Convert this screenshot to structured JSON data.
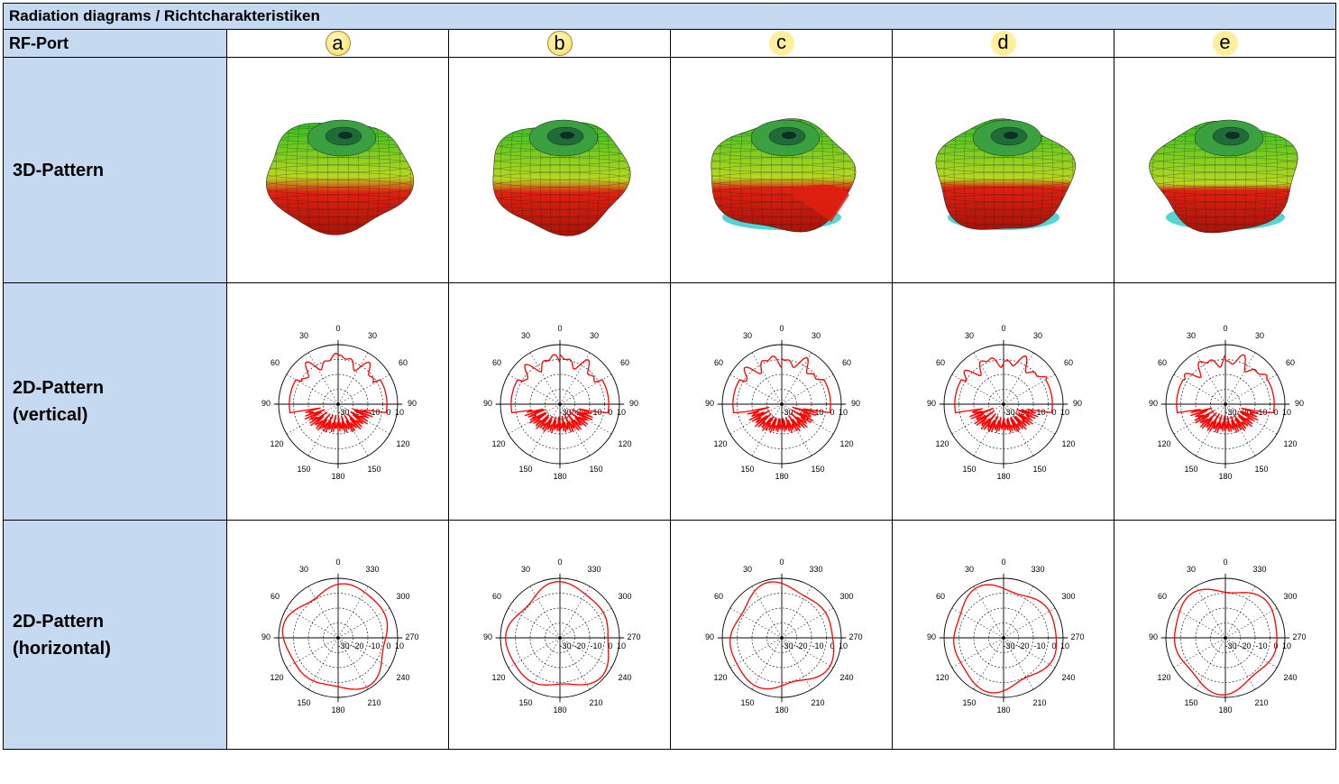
{
  "title": "Radiation diagrams / Richtcharakteristiken",
  "rows": {
    "rf_port": "RF-Port",
    "pattern_3d": "3D-Pattern",
    "pattern_2d_vertical": [
      "2D-Pattern",
      "(vertical)"
    ],
    "pattern_2d_horizontal": [
      "2D-Pattern",
      "(horizontal)"
    ]
  },
  "ports": [
    {
      "label": "a"
    },
    {
      "label": "b"
    },
    {
      "label": "c"
    },
    {
      "label": "d"
    },
    {
      "label": "e"
    }
  ],
  "polar_vertical": {
    "angle_labels": [
      "0",
      "30",
      "30",
      "60",
      "60",
      "90",
      "90",
      "120",
      "120",
      "150",
      "150",
      "180"
    ],
    "radial_labels": [
      "-30",
      "-20",
      "-10",
      "0",
      "10"
    ]
  },
  "polar_horizontal": {
    "angle_labels": [
      "0",
      "30",
      "330",
      "60",
      "300",
      "90",
      "270",
      "120",
      "240",
      "150",
      "210",
      "180"
    ],
    "radial_labels": [
      "-30",
      "-20",
      "-10",
      "0",
      "10"
    ]
  },
  "colors": {
    "header_fill": "#c5d9f1",
    "port_badge": "#ffe98a",
    "trace": "#ff0000",
    "pattern_hot": "#e02010",
    "pattern_mid": "#30c020",
    "pattern_low": "#40d0d0"
  }
}
